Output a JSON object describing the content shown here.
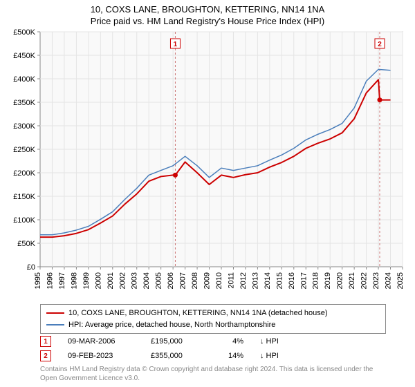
{
  "title_line1": "10, COXS LANE, BROUGHTON, KETTERING, NN14 1NA",
  "title_line2": "Price paid vs. HM Land Registry's House Price Index (HPI)",
  "chart": {
    "type": "line",
    "background_color": "#ffffff",
    "plot_bg": "#f9f9f9",
    "grid_color": "#e4e4e4",
    "axis_color": "#888888",
    "ylim": [
      0,
      500000
    ],
    "ytick_step": 50000,
    "yticks": [
      "£0",
      "£50K",
      "£100K",
      "£150K",
      "£200K",
      "£250K",
      "£300K",
      "£350K",
      "£400K",
      "£450K",
      "£500K"
    ],
    "xlim": [
      1995,
      2025
    ],
    "xtick_step": 1,
    "xticks": [
      "1995",
      "1996",
      "1997",
      "1998",
      "1999",
      "2000",
      "2001",
      "2002",
      "2003",
      "2004",
      "2005",
      "2006",
      "2007",
      "2008",
      "2009",
      "2010",
      "2011",
      "2012",
      "2013",
      "2014",
      "2015",
      "2016",
      "2017",
      "2018",
      "2019",
      "2020",
      "2021",
      "2022",
      "2023",
      "2024",
      "2025"
    ],
    "xlabel_fontsize": 11,
    "ylabel_fontsize": 11,
    "series": [
      {
        "name": "price_paid",
        "label": "10, COXS LANE, BROUGHTON, KETTERING, NN14 1NA (detached house)",
        "color": "#cc0000",
        "line_width": 2,
        "x": [
          1995,
          1996,
          1997,
          1998,
          1999,
          2000,
          2001,
          2002,
          2003,
          2004,
          2005,
          2006,
          2006.19,
          2007,
          2008,
          2009,
          2010,
          2011,
          2012,
          2013,
          2014,
          2015,
          2016,
          2017,
          2018,
          2019,
          2020,
          2021,
          2022,
          2023,
          2023.11,
          2024
        ],
        "y": [
          63000,
          63000,
          66000,
          71000,
          79000,
          93000,
          108000,
          133000,
          155000,
          182000,
          192000,
          195000,
          195000,
          223000,
          200000,
          175000,
          195000,
          190000,
          196000,
          200000,
          212000,
          222000,
          235000,
          252000,
          263000,
          272000,
          285000,
          315000,
          370000,
          398000,
          355000,
          355000
        ]
      },
      {
        "name": "hpi",
        "label": "HPI: Average price, detached house, North Northamptonshire",
        "color": "#4a7ebb",
        "line_width": 1.5,
        "x": [
          1995,
          1996,
          1997,
          1998,
          1999,
          2000,
          2001,
          2002,
          2003,
          2004,
          2005,
          2006,
          2007,
          2008,
          2009,
          2010,
          2011,
          2012,
          2013,
          2014,
          2015,
          2016,
          2017,
          2018,
          2019,
          2020,
          2021,
          2022,
          2023,
          2024
        ],
        "y": [
          68000,
          68000,
          72000,
          78000,
          86000,
          101000,
          117000,
          143000,
          167000,
          195000,
          205000,
          215000,
          235000,
          215000,
          190000,
          210000,
          205000,
          210000,
          215000,
          227000,
          238000,
          252000,
          270000,
          282000,
          292000,
          305000,
          338000,
          395000,
          420000,
          418000
        ]
      }
    ],
    "markers": [
      {
        "num": "1",
        "x": 2006.19,
        "y": 195000,
        "date": "09-MAR-2006",
        "price": "£195,000",
        "pct": "4%",
        "hpi_label": "↓ HPI",
        "color": "#cc0000"
      },
      {
        "num": "2",
        "x": 2023.11,
        "y": 355000,
        "date": "09-FEB-2023",
        "price": "£355,000",
        "pct": "14%",
        "hpi_label": "↓ HPI",
        "color": "#cc0000"
      }
    ],
    "marker_vline_color": "#cc7777",
    "marker_vline_dash": "3,3",
    "marker_box_stroke": "#cc0000",
    "marker_box_fill": "#ffffff"
  },
  "legend": {
    "border_color": "#888888",
    "rows": [
      {
        "color": "#cc0000",
        "label": "10, COXS LANE, BROUGHTON, KETTERING, NN14 1NA (detached house)"
      },
      {
        "color": "#4a7ebb",
        "label": "HPI: Average price, detached house, North Northamptonshire"
      }
    ]
  },
  "attribution": "Contains HM Land Registry data © Crown copyright and database right 2024. This data is licensed under the Open Government Licence v3.0."
}
